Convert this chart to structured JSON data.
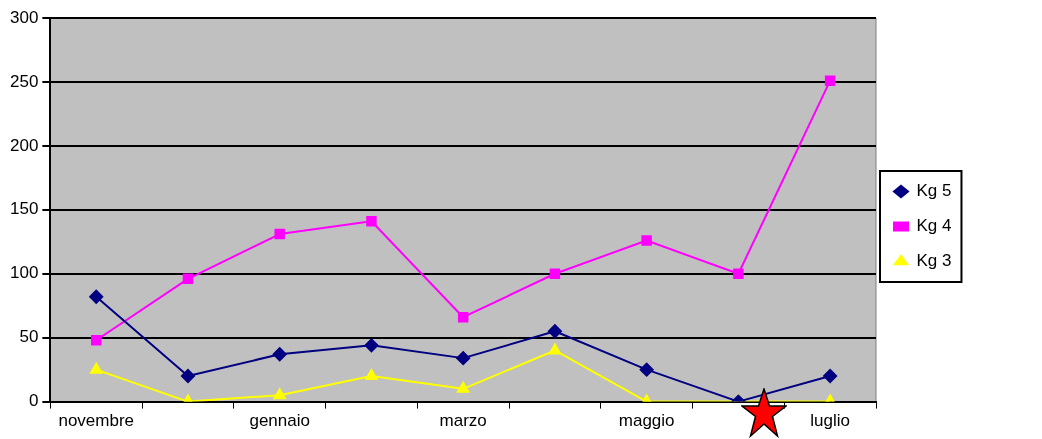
{
  "chart_data": {
    "type": "line",
    "categories": [
      "novembre",
      null,
      "gennaio",
      null,
      "marzo",
      null,
      "maggio",
      null,
      "luglio"
    ],
    "series": [
      {
        "name": "Kg 5",
        "color": "#000080",
        "marker": "diamond",
        "values": [
          82,
          20,
          37,
          44,
          34,
          55,
          25,
          0,
          20
        ]
      },
      {
        "name": "Kg 4",
        "color": "#ff00ff",
        "marker": "square",
        "values": [
          48,
          96,
          131,
          141,
          66,
          100,
          126,
          100,
          251
        ]
      },
      {
        "name": "Kg 3",
        "color": "#ffff00",
        "marker": "triangle",
        "values": [
          25,
          0,
          5,
          20,
          10,
          40,
          0,
          0,
          0
        ]
      }
    ],
    "ylim": [
      0,
      300
    ],
    "yticks": [
      0,
      50,
      100,
      150,
      200,
      250,
      300
    ],
    "grid": "y",
    "legend": "right",
    "line_style": "solid"
  }
}
